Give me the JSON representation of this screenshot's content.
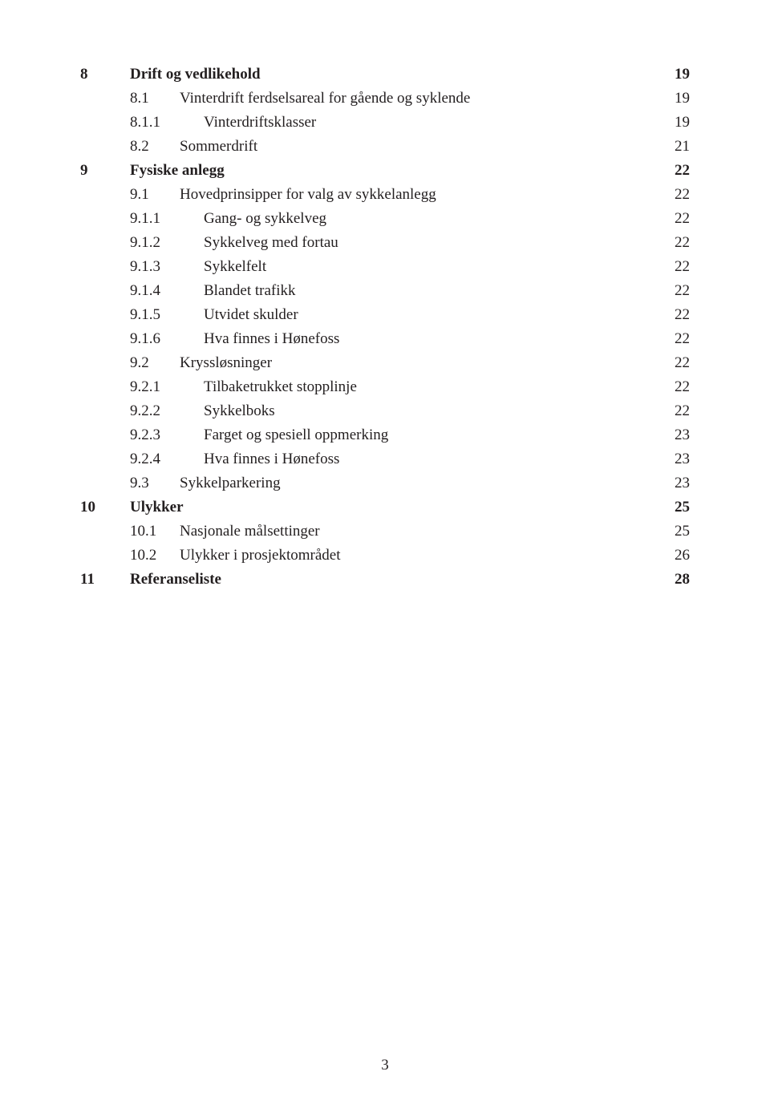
{
  "colors": {
    "text": "#231f20",
    "background": "#ffffff"
  },
  "typography": {
    "body_fontsize_pt": 14,
    "bold_weight": 700,
    "font_family": "serif (Minion/Garamond style)"
  },
  "toc": [
    {
      "level": 1,
      "bold": true,
      "num": "8",
      "label": "Drift og vedlikehold",
      "page": "19"
    },
    {
      "level": 2,
      "bold": false,
      "num": "8.1",
      "label": "Vinterdrift ferdselsareal for gående og syklende",
      "page": "19"
    },
    {
      "level": 3,
      "bold": false,
      "num": "8.1.1",
      "label": "Vinterdriftsklasser",
      "page": "19"
    },
    {
      "level": 2,
      "bold": false,
      "num": "8.2",
      "label": "Sommerdrift",
      "page": "21"
    },
    {
      "level": 1,
      "bold": true,
      "num": "9",
      "label": "Fysiske anlegg",
      "page": "22"
    },
    {
      "level": 2,
      "bold": false,
      "num": "9.1",
      "label": "Hovedprinsipper for valg av sykkelanlegg",
      "page": "22"
    },
    {
      "level": 3,
      "bold": false,
      "num": "9.1.1",
      "label": "Gang- og sykkelveg",
      "page": "22"
    },
    {
      "level": 3,
      "bold": false,
      "num": "9.1.2",
      "label": "Sykkelveg med fortau",
      "page": "22"
    },
    {
      "level": 3,
      "bold": false,
      "num": "9.1.3",
      "label": "Sykkelfelt",
      "page": "22"
    },
    {
      "level": 3,
      "bold": false,
      "num": "9.1.4",
      "label": "Blandet trafikk",
      "page": "22"
    },
    {
      "level": 3,
      "bold": false,
      "num": "9.1.5",
      "label": "Utvidet skulder",
      "page": "22"
    },
    {
      "level": 3,
      "bold": false,
      "num": "9.1.6",
      "label": "Hva finnes i Hønefoss",
      "page": "22"
    },
    {
      "level": 2,
      "bold": false,
      "num": "9.2",
      "label": "Kryssløsninger",
      "page": "22"
    },
    {
      "level": 3,
      "bold": false,
      "num": "9.2.1",
      "label": "Tilbaketrukket stopplinje",
      "page": "22"
    },
    {
      "level": 3,
      "bold": false,
      "num": "9.2.2",
      "label": "Sykkelboks",
      "page": "22"
    },
    {
      "level": 3,
      "bold": false,
      "num": "9.2.3",
      "label": "Farget og spesiell oppmerking",
      "page": "23"
    },
    {
      "level": 3,
      "bold": false,
      "num": "9.2.4",
      "label": "Hva finnes i Hønefoss",
      "page": "23"
    },
    {
      "level": 2,
      "bold": false,
      "num": "9.3",
      "label": "Sykkelparkering",
      "page": "23"
    },
    {
      "level": 1,
      "bold": true,
      "num": "10",
      "label": "Ulykker",
      "page": "25"
    },
    {
      "level": 2,
      "bold": false,
      "num": "10.1",
      "label": "Nasjonale målsettinger",
      "page": "25"
    },
    {
      "level": 2,
      "bold": false,
      "num": "10.2",
      "label": "Ulykker i prosjektområdet",
      "page": "26"
    },
    {
      "level": 1,
      "bold": true,
      "num": "11",
      "label": "Referanseliste",
      "page": "28"
    }
  ],
  "footer_page_number": "3"
}
